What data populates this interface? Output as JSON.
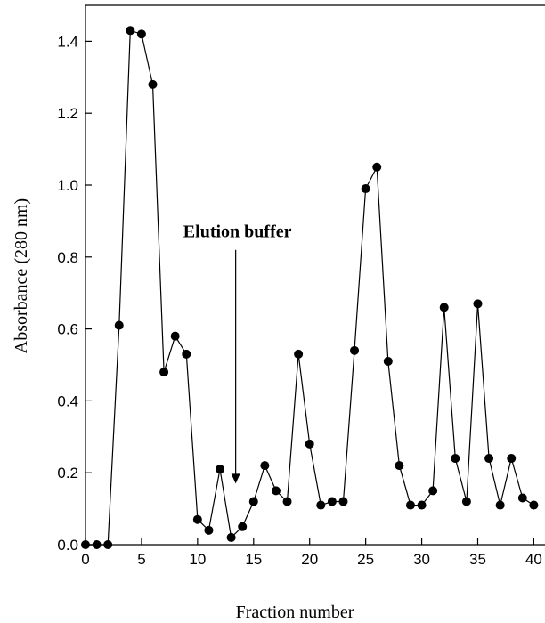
{
  "chart_data": {
    "type": "line",
    "title": "",
    "xlabel": "Fraction number",
    "ylabel": "Absorbance (280 nm)",
    "xlim": [
      0,
      41
    ],
    "ylim": [
      0,
      1.5
    ],
    "xticks": [
      0,
      5,
      10,
      15,
      20,
      25,
      30,
      35,
      40
    ],
    "xtick_labels": [
      "0",
      "5",
      "10",
      "15",
      "20",
      "25",
      "30",
      "35",
      "40"
    ],
    "yticks": [
      0,
      0.2,
      0.4,
      0.6,
      0.8,
      1.0,
      1.2,
      1.4
    ],
    "ytick_labels": [
      "0.0",
      "0.2",
      "0.4",
      "0.6",
      "0.8",
      "1.0",
      "1.2",
      "1.4"
    ],
    "grid": false,
    "series": [
      {
        "x": [
          0,
          1,
          2,
          3,
          4,
          5,
          6,
          7,
          8,
          9,
          10,
          11,
          12,
          13,
          14,
          15,
          16,
          17,
          18,
          19,
          20,
          21,
          22,
          23,
          24,
          25,
          26,
          27,
          28,
          29,
          30,
          31,
          32,
          33,
          34,
          35,
          36,
          37,
          38,
          39,
          40
        ],
        "values": [
          0.0,
          0.0,
          0.0,
          0.61,
          1.43,
          1.42,
          1.28,
          0.48,
          0.58,
          0.53,
          0.07,
          0.04,
          0.21,
          0.02,
          0.05,
          0.12,
          0.22,
          0.15,
          0.12,
          0.53,
          0.28,
          0.11,
          0.12,
          0.12,
          0.54,
          0.99,
          1.05,
          0.51,
          0.22,
          0.11,
          0.11,
          0.15,
          0.66,
          0.24,
          0.12,
          0.67,
          0.24,
          0.11,
          0.24,
          0.13,
          0.11
        ]
      }
    ],
    "annotations": [
      {
        "text": "Elution buffer",
        "arrow_x": 13.4,
        "arrow_tip_y": 0.17,
        "arrow_top_y": 0.82
      }
    ]
  }
}
